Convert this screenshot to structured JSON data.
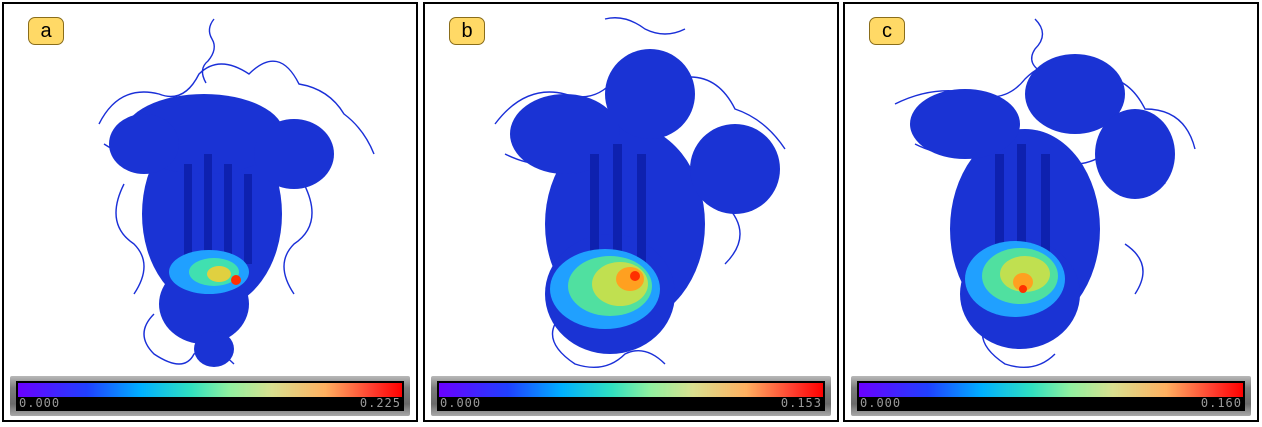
{
  "panels": [
    {
      "label": "a",
      "scale_min": "0.000",
      "scale_max": "0.225"
    },
    {
      "label": "b",
      "scale_min": "0.000",
      "scale_max": "0.153"
    },
    {
      "label": "c",
      "scale_min": "0.000",
      "scale_max": "0.160"
    }
  ],
  "colors": {
    "structure_base": "#1a2fd8",
    "hotspot_low": "#30e0c0",
    "hotspot_high": "#ff3000",
    "badge_fill": "#ffd966"
  }
}
